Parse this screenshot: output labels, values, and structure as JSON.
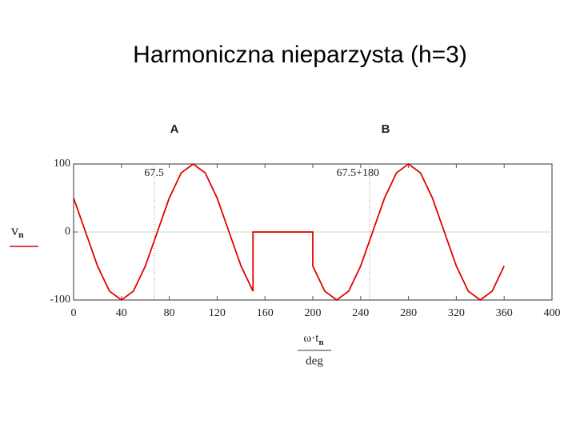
{
  "chart_data": {
    "type": "line",
    "title": "Harmoniczna nieparzysta (h=3)",
    "markers": [
      "A",
      "B"
    ],
    "y_label": {
      "main": "v",
      "sub": "n"
    },
    "x_label": {
      "main": "ω·t",
      "sub": "n",
      "denominator": "deg"
    },
    "x": [
      0,
      10,
      20,
      30,
      40,
      50,
      60,
      70,
      80,
      90,
      100,
      110,
      120,
      130,
      140,
      150,
      150,
      200,
      200,
      210,
      220,
      230,
      240,
      250,
      260,
      270,
      280,
      290,
      300,
      310,
      320,
      330,
      340,
      350,
      360
    ],
    "series": [
      {
        "color": "#e00000",
        "values": [
          50,
          0,
          -50,
          -87,
          -100,
          -87,
          -50,
          0,
          50,
          87,
          100,
          87,
          50,
          0,
          -50,
          -87,
          0,
          0,
          -50,
          -87,
          -100,
          -87,
          -50,
          0,
          50,
          87,
          100,
          87,
          50,
          0,
          -50,
          -87,
          -100,
          -87,
          -50
        ]
      }
    ],
    "annotations": [
      {
        "x": 67.5,
        "label": "67.5"
      },
      {
        "x": 247.5,
        "label": "67.5+180"
      }
    ],
    "zero_line_color": "#b8e0b8",
    "xlim": [
      0,
      400
    ],
    "xticks": [
      0,
      40,
      80,
      120,
      160,
      200,
      240,
      280,
      320,
      360,
      400
    ],
    "ylim": [
      -100,
      100
    ],
    "yticks": [
      -100,
      0,
      100
    ]
  }
}
